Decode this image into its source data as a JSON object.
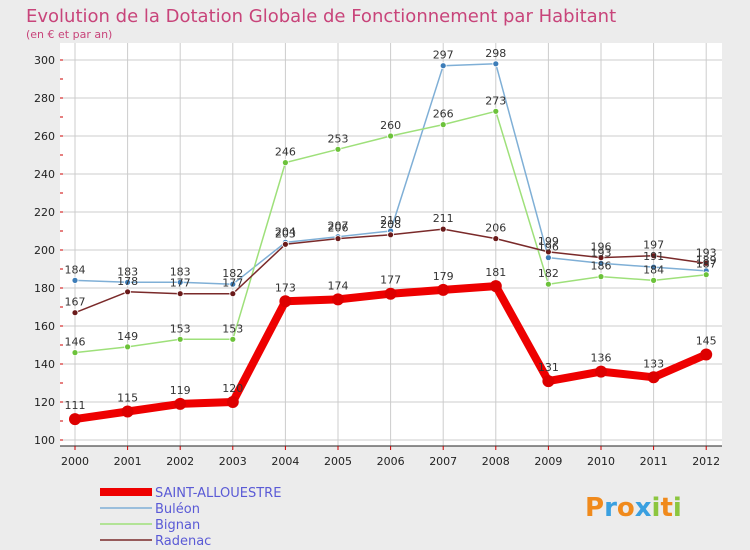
{
  "chart_data": {
    "type": "line",
    "title": "Evolution de la Dotation Globale de Fonctionnement par Habitant",
    "subtitle": "(en € et par an)",
    "xlabel": "",
    "ylabel": "",
    "ylim": [
      100,
      300
    ],
    "yticks": [
      100,
      120,
      140,
      160,
      180,
      200,
      220,
      240,
      260,
      280,
      300
    ],
    "grid": true,
    "legend_position": "bottom-left",
    "categories": [
      "2000",
      "2001",
      "2002",
      "2003",
      "2004",
      "2005",
      "2006",
      "2007",
      "2008",
      "2009",
      "2010",
      "2011",
      "2012"
    ],
    "series": [
      {
        "name": "SAINT-ALLOUESTRE",
        "color": "#ee0000",
        "marker_color": "#cc0000",
        "values": [
          111,
          115,
          119,
          120,
          173,
          174,
          177,
          179,
          181,
          131,
          136,
          133,
          145
        ]
      },
      {
        "name": "Buléon",
        "color": "#7fafd6",
        "marker_color": "#3d7db8",
        "values": [
          184,
          183,
          183,
          182,
          204,
          207,
          210,
          297,
          298,
          196,
          193,
          191,
          189
        ]
      },
      {
        "name": "Bignan",
        "color": "#9ee07a",
        "marker_color": "#6cc23a",
        "values": [
          146,
          149,
          153,
          153,
          246,
          253,
          260,
          266,
          273,
          182,
          186,
          184,
          187
        ]
      },
      {
        "name": "Radenac",
        "color": "#7a2a2a",
        "marker_color": "#6a1a1a",
        "values": [
          167,
          178,
          177,
          177,
          203,
          206,
          208,
          211,
          206,
          199,
          196,
          197,
          193
        ]
      }
    ]
  },
  "logo": {
    "letters": [
      "P",
      "r",
      "o",
      "x",
      "i",
      "t",
      "i"
    ],
    "colors": [
      "#f08a1c",
      "#3aa0e0",
      "#f08a1c",
      "#3aa0e0",
      "#8cc63f",
      "#f08a1c",
      "#8cc63f"
    ]
  }
}
